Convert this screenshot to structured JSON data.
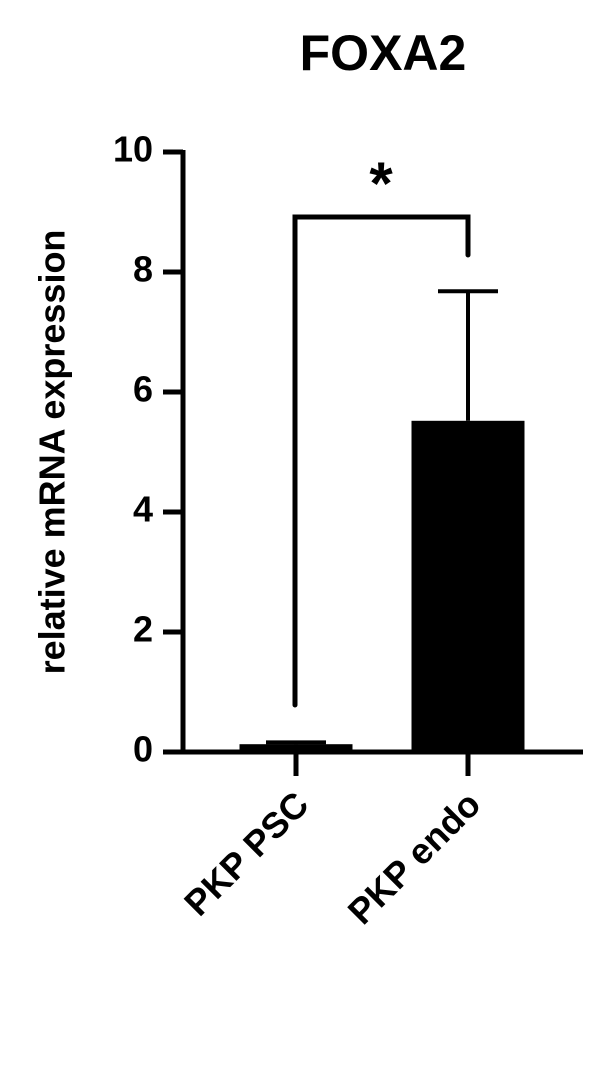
{
  "chart_data": {
    "type": "bar",
    "title": "FOXA2",
    "y_label": "relative mRNA expression",
    "categories": [
      "PKP PSC",
      "PKP endo"
    ],
    "values": [
      0.13,
      5.52
    ],
    "errors": [
      0.03,
      2.16
    ],
    "color": "#000000",
    "ylim": [
      0,
      10
    ],
    "yticks": [
      0,
      2,
      4,
      6,
      8,
      10
    ],
    "annotation": "*"
  }
}
